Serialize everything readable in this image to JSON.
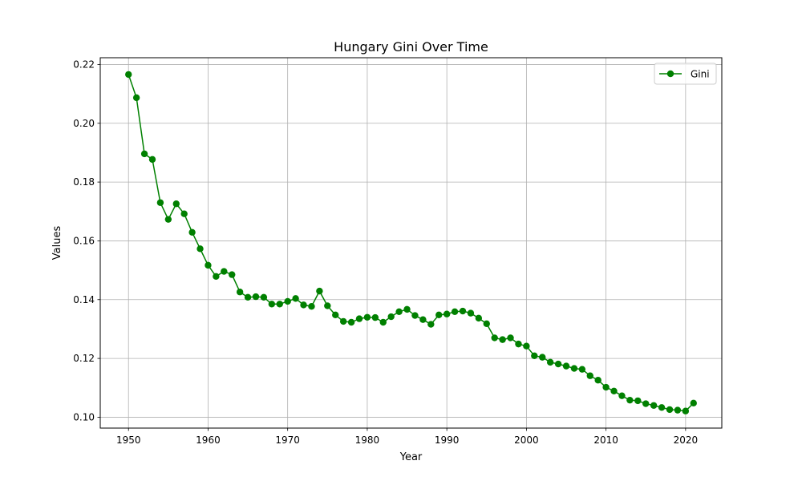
{
  "chart_data": {
    "type": "line",
    "title": "Hungary Gini Over Time",
    "xlabel": "Year",
    "ylabel": "Values",
    "xlim": [
      1946.45,
      2024.55
    ],
    "ylim": [
      0.0963,
      0.2223
    ],
    "xticks": [
      1950,
      1960,
      1970,
      1980,
      1990,
      2000,
      2010,
      2020
    ],
    "yticks": [
      0.1,
      0.12,
      0.14,
      0.16,
      0.18,
      0.2,
      0.22
    ],
    "ytick_labels": [
      "0.10",
      "0.12",
      "0.14",
      "0.16",
      "0.18",
      "0.20",
      "0.22"
    ],
    "grid": true,
    "legend_position": "top-right",
    "x": [
      1950,
      1951,
      1952,
      1953,
      1954,
      1955,
      1956,
      1957,
      1958,
      1959,
      1960,
      1961,
      1962,
      1963,
      1964,
      1965,
      1966,
      1967,
      1968,
      1969,
      1970,
      1971,
      1972,
      1973,
      1974,
      1975,
      1976,
      1977,
      1978,
      1979,
      1980,
      1981,
      1982,
      1983,
      1984,
      1985,
      1986,
      1987,
      1988,
      1989,
      1990,
      1991,
      1992,
      1993,
      1994,
      1995,
      1996,
      1997,
      1998,
      1999,
      2000,
      2001,
      2002,
      2003,
      2004,
      2005,
      2006,
      2007,
      2008,
      2009,
      2010,
      2011,
      2012,
      2013,
      2014,
      2015,
      2016,
      2017,
      2018,
      2019,
      2020,
      2021
    ],
    "series": [
      {
        "name": "Gini",
        "color": "#008000",
        "values": [
          0.2166,
          0.2087,
          0.1896,
          0.1877,
          0.173,
          0.1673,
          0.1726,
          0.1692,
          0.1629,
          0.1573,
          0.1517,
          0.1479,
          0.1496,
          0.1485,
          0.1426,
          0.1408,
          0.141,
          0.1408,
          0.1385,
          0.1385,
          0.1394,
          0.1404,
          0.1382,
          0.1377,
          0.1429,
          0.1379,
          0.1348,
          0.1326,
          0.1323,
          0.1335,
          0.134,
          0.1339,
          0.1323,
          0.1342,
          0.1359,
          0.1367,
          0.1346,
          0.1332,
          0.1316,
          0.1348,
          0.1351,
          0.1359,
          0.1361,
          0.1354,
          0.1337,
          0.1318,
          0.127,
          0.1264,
          0.127,
          0.1249,
          0.1242,
          0.1209,
          0.1204,
          0.1187,
          0.1181,
          0.1174,
          0.1166,
          0.1163,
          0.1141,
          0.1126,
          0.1102,
          0.1089,
          0.1073,
          0.1058,
          0.1056,
          0.1046,
          0.104,
          0.1033,
          0.1026,
          0.1024,
          0.1021,
          0.1048
        ]
      }
    ]
  }
}
